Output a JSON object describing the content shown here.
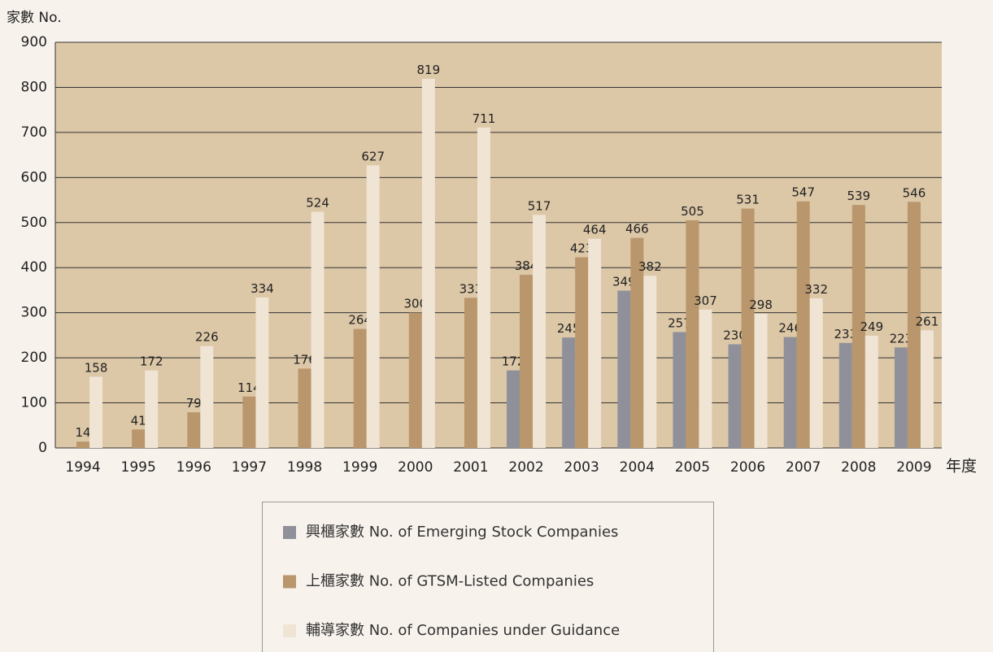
{
  "chart_data": {
    "type": "bar",
    "y_label": "家數 No.",
    "x_label": "年度",
    "categories": [
      "1994",
      "1995",
      "1996",
      "1997",
      "1998",
      "1999",
      "2000",
      "2001",
      "2002",
      "2003",
      "2004",
      "2005",
      "2006",
      "2007",
      "2008",
      "2009"
    ],
    "series": [
      {
        "name": "興櫃家數 No. of Emerging Stock Companies",
        "color": "#8f9099",
        "values": [
          null,
          null,
          null,
          null,
          null,
          null,
          null,
          null,
          172,
          245,
          349,
          257,
          230,
          246,
          233,
          223
        ]
      },
      {
        "name": "上櫃家數 No. of GTSM-Listed Companies",
        "color": "#b9966b",
        "values": [
          14,
          41,
          79,
          114,
          176,
          264,
          300,
          333,
          384,
          423,
          466,
          505,
          531,
          547,
          539,
          546
        ]
      },
      {
        "name": "輔導家數 No. of Companies under Guidance",
        "color": "#f0e4d4",
        "values": [
          158,
          172,
          226,
          334,
          524,
          627,
          819,
          711,
          517,
          464,
          382,
          307,
          298,
          332,
          249,
          261
        ]
      }
    ],
    "ylim": [
      0,
      900
    ],
    "yticks": [
      0,
      100,
      200,
      300,
      400,
      500,
      600,
      700,
      800,
      900
    ],
    "grid": true
  }
}
